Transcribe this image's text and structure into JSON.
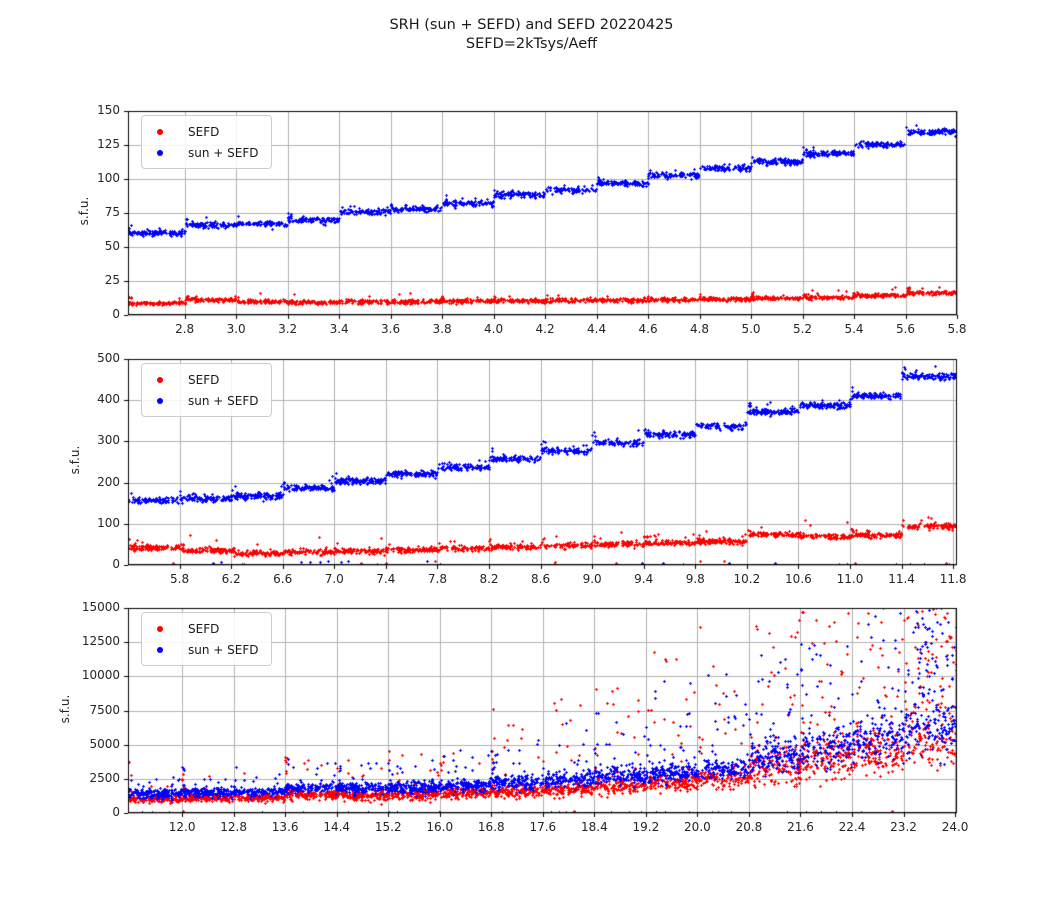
{
  "title": {
    "line1": "SRH (sun + SEFD) and SEFD 20220425",
    "line2": "SEFD=2kTsys/Aeff"
  },
  "ylabel": "s.f.u.",
  "legend": {
    "position": "upper left",
    "items": [
      {
        "label": "SEFD",
        "color": "#ff0000"
      },
      {
        "label": "sun + SEFD",
        "color": "#0000ff"
      }
    ]
  },
  "colors": {
    "red": "#ff0000",
    "blue": "#0000ff",
    "grid": "#b0b0b0",
    "axis": "#000000",
    "text": "#262626",
    "background": "#ffffff"
  },
  "chart_data": [
    {
      "type": "scatter",
      "ylabel": "s.f.u.",
      "xlim": [
        2.58,
        5.8
      ],
      "ylim": [
        0,
        150
      ],
      "grid": true,
      "xticks": [
        [
          2.8,
          "2.8"
        ],
        [
          3.0,
          "3.0"
        ],
        [
          3.2,
          "3.2"
        ],
        [
          3.4,
          "3.4"
        ],
        [
          3.6,
          "3.6"
        ],
        [
          3.8,
          "3.8"
        ],
        [
          4.0,
          "4.0"
        ],
        [
          4.2,
          "4.2"
        ],
        [
          4.4,
          "4.4"
        ],
        [
          4.6,
          "4.6"
        ],
        [
          4.8,
          "4.8"
        ],
        [
          5.0,
          "5.0"
        ],
        [
          5.2,
          "5.2"
        ],
        [
          5.4,
          "5.4"
        ],
        [
          5.6,
          "5.6"
        ],
        [
          5.8,
          "5.8"
        ]
      ],
      "yticks": [
        [
          0,
          "0"
        ],
        [
          25,
          "25"
        ],
        [
          50,
          "50"
        ],
        [
          75,
          "75"
        ],
        [
          100,
          "100"
        ],
        [
          125,
          "125"
        ],
        [
          150,
          "150"
        ]
      ],
      "series": [
        {
          "name": "SEFD",
          "color": "#ff0000",
          "marker": "+",
          "n": 1700,
          "seed": 101,
          "sigma": 0.75,
          "out_p": 0.025,
          "out_amp": 7,
          "out_pow": 2,
          "start_p": 0.3,
          "start_amp": 4,
          "zero_p": 0,
          "zero_max": 0,
          "steps": [
            [
              2.58,
              2.8,
              9.0
            ],
            [
              2.8,
              3.0,
              11.5
            ],
            [
              3.0,
              3.2,
              10.0
            ],
            [
              3.2,
              3.4,
              9.5
            ],
            [
              3.4,
              3.6,
              10.0
            ],
            [
              3.6,
              3.8,
              10.0
            ],
            [
              3.8,
              4.0,
              10.5
            ],
            [
              4.0,
              4.2,
              10.5
            ],
            [
              4.2,
              4.4,
              11.0
            ],
            [
              4.4,
              4.6,
              11.0
            ],
            [
              4.6,
              4.8,
              11.5
            ],
            [
              4.8,
              5.0,
              12.0
            ],
            [
              5.0,
              5.2,
              12.5
            ],
            [
              5.2,
              5.4,
              13.0
            ],
            [
              5.4,
              5.6,
              14.5
            ],
            [
              5.6,
              5.81,
              16.5
            ]
          ]
        },
        {
          "name": "sun + SEFD",
          "color": "#0000ff",
          "marker": "+",
          "n": 1700,
          "seed": 102,
          "sigma": 1.1,
          "out_p": 0.02,
          "out_amp": 8,
          "out_pow": 2,
          "start_p": 0.3,
          "start_amp": 5,
          "zero_p": 0,
          "zero_max": 0,
          "steps": [
            [
              2.58,
              2.8,
              60.5
            ],
            [
              2.8,
              3.0,
              66.5
            ],
            [
              3.0,
              3.2,
              67.5
            ],
            [
              3.2,
              3.4,
              70.0
            ],
            [
              3.4,
              3.6,
              76.0
            ],
            [
              3.6,
              3.8,
              78.0
            ],
            [
              3.8,
              4.0,
              82.5
            ],
            [
              4.0,
              4.2,
              88.5
            ],
            [
              4.2,
              4.4,
              92.0
            ],
            [
              4.4,
              4.6,
              97.0
            ],
            [
              4.6,
              4.8,
              103.0
            ],
            [
              4.8,
              5.0,
              108.0
            ],
            [
              5.0,
              5.2,
              113.0
            ],
            [
              5.2,
              5.4,
              119.0
            ],
            [
              5.4,
              5.6,
              125.5
            ],
            [
              5.6,
              5.81,
              134.5
            ]
          ]
        }
      ]
    },
    {
      "type": "scatter",
      "ylabel": "s.f.u.",
      "xlim": [
        5.4,
        11.83
      ],
      "ylim": [
        0,
        500
      ],
      "grid": true,
      "xticks": [
        [
          5.8,
          "5.8"
        ],
        [
          6.2,
          "6.2"
        ],
        [
          6.6,
          "6.6"
        ],
        [
          7.0,
          "7.0"
        ],
        [
          7.4,
          "7.4"
        ],
        [
          7.8,
          "7.8"
        ],
        [
          8.2,
          "8.2"
        ],
        [
          8.6,
          "8.6"
        ],
        [
          9.0,
          "9.0"
        ],
        [
          9.4,
          "9.4"
        ],
        [
          9.8,
          "9.8"
        ],
        [
          10.2,
          "10.2"
        ],
        [
          10.6,
          "10.6"
        ],
        [
          11.0,
          "11.0"
        ],
        [
          11.4,
          "11.4"
        ],
        [
          11.8,
          "11.8"
        ]
      ],
      "yticks": [
        [
          0,
          "0"
        ],
        [
          100,
          "100"
        ],
        [
          200,
          "200"
        ],
        [
          300,
          "300"
        ],
        [
          400,
          "400"
        ],
        [
          500,
          "500"
        ]
      ],
      "series": [
        {
          "name": "SEFD",
          "color": "#ff0000",
          "marker": "+",
          "n": 1700,
          "seed": 201,
          "sigma": 3.2,
          "out_p": 0.035,
          "out_amp": 45,
          "out_pow": 2,
          "start_p": 0.25,
          "start_amp": 18,
          "zero_p": 0.012,
          "zero_max": 10,
          "steps": [
            [
              5.4,
              5.8,
              43
            ],
            [
              5.8,
              6.2,
              36
            ],
            [
              6.2,
              6.6,
              29
            ],
            [
              6.6,
              7.0,
              33
            ],
            [
              7.0,
              7.4,
              35
            ],
            [
              7.4,
              7.8,
              38
            ],
            [
              7.8,
              8.2,
              41
            ],
            [
              8.2,
              8.6,
              44
            ],
            [
              8.6,
              9.0,
              48
            ],
            [
              9.0,
              9.4,
              51
            ],
            [
              9.4,
              9.8,
              54
            ],
            [
              9.8,
              10.2,
              58
            ],
            [
              10.2,
              10.6,
              75
            ],
            [
              10.6,
              11.0,
              70
            ],
            [
              11.0,
              11.4,
              73
            ],
            [
              11.4,
              11.84,
              95
            ]
          ]
        },
        {
          "name": "sun + SEFD",
          "color": "#0000ff",
          "marker": "+",
          "n": 1700,
          "seed": 202,
          "sigma": 4.0,
          "out_p": 0.03,
          "out_amp": 40,
          "out_pow": 2,
          "start_p": 0.3,
          "start_amp": 22,
          "zero_p": 0.012,
          "zero_max": 10,
          "steps": [
            [
              5.4,
              5.8,
              158
            ],
            [
              5.8,
              6.2,
              163
            ],
            [
              6.2,
              6.6,
              168
            ],
            [
              6.6,
              7.0,
              188
            ],
            [
              7.0,
              7.4,
              205
            ],
            [
              7.4,
              7.8,
              222
            ],
            [
              7.8,
              8.2,
              238
            ],
            [
              8.2,
              8.6,
              258
            ],
            [
              8.6,
              9.0,
              278
            ],
            [
              9.0,
              9.4,
              298
            ],
            [
              9.4,
              9.8,
              318
            ],
            [
              9.8,
              10.2,
              338
            ],
            [
              10.2,
              10.6,
              373
            ],
            [
              10.6,
              11.0,
              388
            ],
            [
              11.0,
              11.4,
              412
            ],
            [
              11.4,
              11.84,
              458
            ]
          ]
        }
      ]
    },
    {
      "type": "scatter",
      "ylabel": "s.f.u.",
      "xlim": [
        11.16,
        24.03
      ],
      "ylim": [
        0,
        15000
      ],
      "grid": true,
      "xticks": [
        [
          12.0,
          "12.0"
        ],
        [
          12.8,
          "12.8"
        ],
        [
          13.6,
          "13.6"
        ],
        [
          14.4,
          "14.4"
        ],
        [
          15.2,
          "15.2"
        ],
        [
          16.0,
          "16.0"
        ],
        [
          16.8,
          "16.8"
        ],
        [
          17.6,
          "17.6"
        ],
        [
          18.4,
          "18.4"
        ],
        [
          19.2,
          "19.2"
        ],
        [
          20.0,
          "20.0"
        ],
        [
          20.8,
          "20.8"
        ],
        [
          21.6,
          "21.6"
        ],
        [
          22.4,
          "22.4"
        ],
        [
          23.2,
          "23.2"
        ],
        [
          24.0,
          "24.0"
        ]
      ],
      "yticks": [
        [
          0,
          "0"
        ],
        [
          2500,
          "2500"
        ],
        [
          5000,
          "5000"
        ],
        [
          7500,
          "7500"
        ],
        [
          10000,
          "10000"
        ],
        [
          12500,
          "12500"
        ],
        [
          15000,
          "15000"
        ]
      ],
      "series": [
        {
          "name": "SEFD",
          "color": "#ff0000",
          "marker": "+",
          "n": 2600,
          "seed": 301,
          "sigma": 150,
          "out_p": 0.05,
          "out_amp": 2000,
          "out_pow": 1,
          "start_p": 0.2,
          "start_amp": 3000,
          "zero_p": 0.012,
          "zero_max": 120,
          "steps": [
            [
              11.16,
              12.0,
              1060,
              140,
              0.04,
              1500
            ],
            [
              12.0,
              12.8,
              1120,
              150,
              0.05,
              1800
            ],
            [
              12.8,
              13.6,
              1150,
              150,
              0.05,
              2000
            ],
            [
              13.6,
              14.4,
              1380,
              180,
              0.06,
              2500
            ],
            [
              14.4,
              15.2,
              1320,
              180,
              0.06,
              2500
            ],
            [
              15.2,
              16.0,
              1380,
              190,
              0.06,
              3000
            ],
            [
              16.0,
              16.8,
              1480,
              210,
              0.07,
              3500
            ],
            [
              16.8,
              17.6,
              1620,
              230,
              0.08,
              5000
            ],
            [
              17.6,
              18.4,
              1780,
              260,
              0.09,
              6500
            ],
            [
              18.4,
              19.2,
              2050,
              300,
              0.1,
              8000
            ],
            [
              19.2,
              20.0,
              2250,
              340,
              0.11,
              9000
            ],
            [
              20.0,
              20.8,
              2550,
              400,
              0.12,
              10000
            ],
            [
              20.8,
              21.6,
              3300,
              700,
              0.14,
              11000
            ],
            [
              21.6,
              22.4,
              4000,
              800,
              0.15,
              11000
            ],
            [
              22.4,
              23.2,
              4500,
              900,
              0.16,
              10500
            ],
            [
              23.2,
              24.03,
              5100,
              1000,
              0.45,
              9900
            ]
          ]
        },
        {
          "name": "sun + SEFD",
          "color": "#0000ff",
          "marker": "+",
          "n": 2600,
          "seed": 302,
          "sigma": 180,
          "out_p": 0.05,
          "out_amp": 1800,
          "out_pow": 1,
          "start_p": 0.2,
          "start_amp": 2500,
          "zero_p": 0.012,
          "zero_max": 120,
          "steps": [
            [
              11.16,
              12.0,
              1450,
              160,
              0.04,
              1200
            ],
            [
              12.0,
              12.8,
              1520,
              170,
              0.05,
              1500
            ],
            [
              12.8,
              13.6,
              1560,
              170,
              0.05,
              1500
            ],
            [
              13.6,
              14.4,
              1900,
              200,
              0.06,
              1800
            ],
            [
              14.4,
              15.2,
              1830,
              200,
              0.06,
              1800
            ],
            [
              15.2,
              16.0,
              1900,
              210,
              0.06,
              2000
            ],
            [
              16.0,
              16.8,
              2050,
              230,
              0.07,
              2500
            ],
            [
              16.8,
              17.6,
              2250,
              250,
              0.08,
              3500
            ],
            [
              17.6,
              18.4,
              2450,
              280,
              0.09,
              4500
            ],
            [
              18.4,
              19.2,
              2750,
              320,
              0.1,
              5500
            ],
            [
              19.2,
              20.0,
              2950,
              360,
              0.11,
              6500
            ],
            [
              20.0,
              20.8,
              3300,
              420,
              0.12,
              7000
            ],
            [
              20.8,
              21.6,
              4200,
              700,
              0.13,
              7500
            ],
            [
              21.6,
              22.4,
              4900,
              800,
              0.14,
              8000
            ],
            [
              22.4,
              23.2,
              5500,
              900,
              0.15,
              8500
            ],
            [
              23.2,
              24.03,
              6100,
              1000,
              0.4,
              8800
            ]
          ]
        }
      ]
    }
  ]
}
